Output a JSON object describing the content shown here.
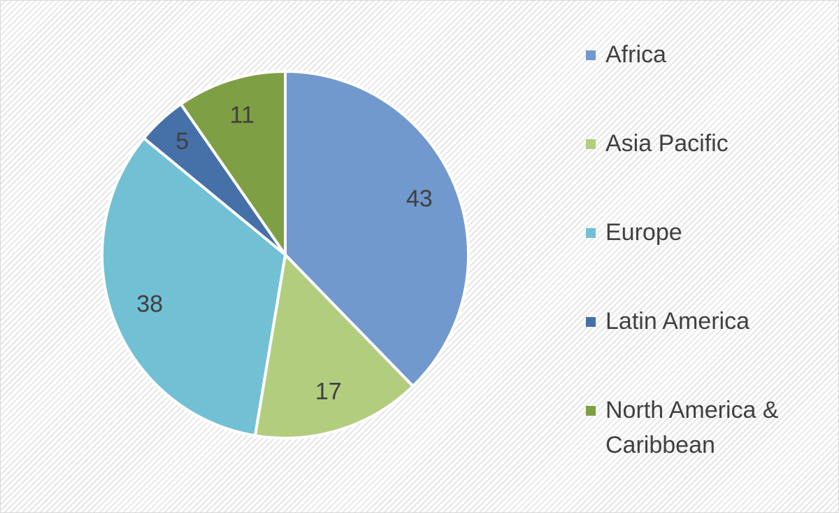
{
  "chart_data": {
    "type": "pie",
    "categories": [
      "Africa",
      "Asia Pacific",
      "Europe",
      "Latin America",
      "North America & Caribbean"
    ],
    "values": [
      43,
      17,
      38,
      5,
      11
    ],
    "colors": [
      "#7199ce",
      "#b3cd7f",
      "#72c0d4",
      "#4670a8",
      "#7f9f45"
    ],
    "legend": "right"
  }
}
